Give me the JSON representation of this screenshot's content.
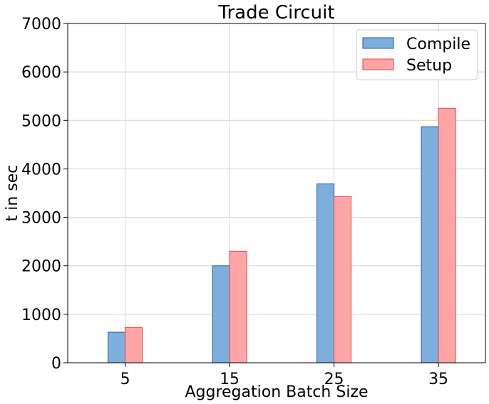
{
  "chart_data": {
    "type": "bar",
    "title": "Trade Circuit",
    "xlabel": "Aggregation Batch Size",
    "ylabel": "t in sec",
    "categories": [
      "5",
      "15",
      "25",
      "35"
    ],
    "series": [
      {
        "name": "Compile",
        "values": [
          630,
          2000,
          3690,
          4870
        ],
        "fill": "#7eaedc",
        "stroke": "#1f5fa8"
      },
      {
        "name": "Setup",
        "values": [
          730,
          2300,
          3430,
          5250
        ],
        "fill": "#ffa5a5",
        "stroke": "#e0474c"
      }
    ],
    "ylim": [
      0,
      7000
    ],
    "yticks": [
      0,
      1000,
      2000,
      3000,
      4000,
      5000,
      6000,
      7000
    ],
    "grid": true,
    "legend_position": "top-right"
  }
}
